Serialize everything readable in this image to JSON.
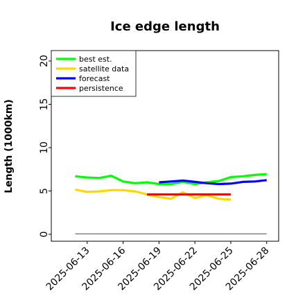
{
  "chart_data": {
    "type": "line",
    "title": "Ice edge length",
    "xlabel": "",
    "ylabel": "Length (1000km)",
    "ylim": [
      -0.8,
      21.2
    ],
    "yticks": [
      0,
      5,
      10,
      15,
      20
    ],
    "xlim": [
      "2025-06-10",
      "2025-06-29"
    ],
    "xtick_labels": [
      "2025-06-13",
      "2025-06-16",
      "2025-06-19",
      "2025-06-22",
      "2025-06-25",
      "2025-06-28"
    ],
    "highlight_tick": "2025-06-19",
    "highlight_color": "#228B22",
    "legend_position": "top-left",
    "grid": false,
    "series": [
      {
        "name": "best est.",
        "color": "#00ff00",
        "x": [
          "2025-06-12",
          "2025-06-13",
          "2025-06-14",
          "2025-06-15",
          "2025-06-16",
          "2025-06-17",
          "2025-06-18",
          "2025-06-19",
          "2025-06-20",
          "2025-06-21",
          "2025-06-22",
          "2025-06-23",
          "2025-06-24",
          "2025-06-25",
          "2025-06-26",
          "2025-06-27",
          "2025-06-28"
        ],
        "y": [
          6.7,
          6.55,
          6.5,
          6.75,
          6.1,
          5.9,
          6.0,
          5.8,
          5.8,
          6.05,
          5.8,
          6.0,
          6.15,
          6.6,
          6.7,
          6.85,
          6.95
        ]
      },
      {
        "name": "satellite data",
        "color": "#ffd700",
        "x": [
          "2025-06-12",
          "2025-06-13",
          "2025-06-14",
          "2025-06-15",
          "2025-06-16",
          "2025-06-17",
          "2025-06-18",
          "2025-06-19",
          "2025-06-20",
          "2025-06-21",
          "2025-06-22",
          "2025-06-23",
          "2025-06-24",
          "2025-06-25"
        ],
        "y": [
          5.15,
          4.9,
          4.95,
          5.1,
          5.1,
          4.95,
          4.6,
          4.3,
          4.1,
          4.85,
          4.2,
          4.5,
          4.1,
          4.0
        ]
      },
      {
        "name": "forecast",
        "color": "#0000ff",
        "x": [
          "2025-06-19",
          "2025-06-20",
          "2025-06-21",
          "2025-06-22",
          "2025-06-23",
          "2025-06-24",
          "2025-06-25",
          "2025-06-26",
          "2025-06-27",
          "2025-06-28"
        ],
        "y": [
          6.0,
          6.1,
          6.2,
          6.05,
          5.9,
          5.8,
          5.85,
          6.05,
          6.1,
          6.25
        ]
      },
      {
        "name": "persistence",
        "color": "#ff0000",
        "x": [
          "2025-06-18",
          "2025-06-19",
          "2025-06-20",
          "2025-06-21",
          "2025-06-22",
          "2025-06-23",
          "2025-06-24",
          "2025-06-25"
        ],
        "y": [
          4.6,
          4.6,
          4.6,
          4.6,
          4.6,
          4.6,
          4.6,
          4.6
        ]
      },
      {
        "name": "",
        "color": "#808080",
        "x": [
          "2025-06-12",
          "2025-06-28"
        ],
        "y": [
          0.05,
          0.05
        ]
      }
    ]
  }
}
